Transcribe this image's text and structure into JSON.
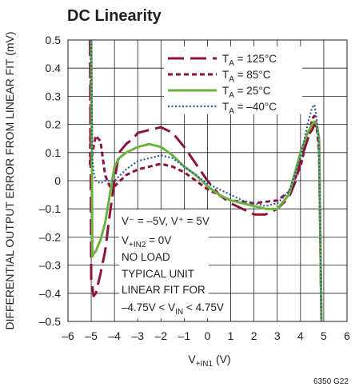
{
  "chart_data": {
    "type": "line",
    "title": "DC Linearity",
    "ylabel": "DIFFERENTIAL OUTPUT ERROR FROM LINEAR FIT (mV)",
    "xlabel": {
      "main": "V",
      "sub": "+IN1",
      "unit": " (V)"
    },
    "xlim": [
      -6,
      6
    ],
    "ylim": [
      -0.5,
      0.5
    ],
    "xticks": [
      -6,
      -5,
      -4,
      -3,
      -2,
      -1,
      0,
      1,
      2,
      3,
      4,
      5,
      6
    ],
    "yticks": [
      0.5,
      0.4,
      0.3,
      0.2,
      0.1,
      0,
      -0.1,
      -0.2,
      -0.3,
      -0.4,
      -0.5
    ],
    "xtick_labels": [
      "–6",
      "–5",
      "–4",
      "–3",
      "–2",
      "–1",
      "0",
      "1",
      "2",
      "3",
      "4",
      "5",
      "6"
    ],
    "ytick_labels": [
      "0.5",
      "0.4",
      "0.3",
      "0.2",
      "0.1",
      "0",
      "–0.1",
      "–0.2",
      "–0.3",
      "–0.4",
      "–0.5"
    ],
    "grid": true,
    "legend_position": "top-right",
    "series": [
      {
        "name": "T",
        "name_sub": "A",
        "name_rest": " = 125°C",
        "color": "#8a1538",
        "style": "long-dash",
        "x": [
          -5.05,
          -5.0,
          -4.9,
          -4.8,
          -4.6,
          -4.4,
          -4.2,
          -4.0,
          -3.8,
          -3.5,
          -3.2,
          -3.0,
          -2.5,
          -2.0,
          -1.5,
          -1.0,
          -0.5,
          0.0,
          0.5,
          1.0,
          1.5,
          2.0,
          2.5,
          3.0,
          3.5,
          3.8,
          4.0,
          4.2,
          4.4,
          4.5,
          4.6,
          4.7,
          4.8,
          4.85,
          4.9
        ],
        "y": [
          0.5,
          -0.35,
          -0.41,
          -0.4,
          -0.33,
          -0.25,
          -0.12,
          0.0,
          0.1,
          0.13,
          0.15,
          0.17,
          0.18,
          0.19,
          0.17,
          0.12,
          0.06,
          0.0,
          -0.05,
          -0.08,
          -0.1,
          -0.12,
          -0.12,
          -0.1,
          -0.06,
          0.0,
          0.07,
          0.12,
          0.17,
          0.18,
          0.2,
          0.19,
          0.13,
          -0.2,
          -0.5
        ]
      },
      {
        "name": "T",
        "name_sub": "A",
        "name_rest": " = 85°C",
        "color": "#8a1538",
        "style": "short-dash",
        "x": [
          -5.0,
          -5.05,
          -4.9,
          -4.8,
          -4.6,
          -4.5,
          -4.4,
          -4.2,
          -4.0,
          -3.5,
          -3.0,
          -2.5,
          -2.0,
          -1.5,
          -1.0,
          -0.5,
          0.0,
          0.5,
          1.0,
          2.0,
          3.0,
          3.5,
          4.0,
          4.2,
          4.4,
          4.5,
          4.6,
          4.7,
          4.8,
          4.85,
          4.9
        ],
        "y": [
          0.5,
          0.05,
          0.12,
          0.16,
          0.14,
          0.08,
          0.02,
          -0.02,
          -0.02,
          0.02,
          0.04,
          0.05,
          0.06,
          0.05,
          0.03,
          0.0,
          -0.03,
          -0.05,
          -0.07,
          -0.08,
          -0.07,
          -0.04,
          0.05,
          0.12,
          0.17,
          0.22,
          0.23,
          0.19,
          0.1,
          -0.2,
          -0.5
        ]
      },
      {
        "name": "T",
        "name_sub": "A",
        "name_rest": " = 25°C",
        "color": "#6bb33f",
        "style": "solid",
        "x": [
          -5.0,
          -4.95,
          -4.9,
          -4.8,
          -4.6,
          -4.4,
          -4.2,
          -4.0,
          -3.8,
          -3.5,
          -3.0,
          -2.5,
          -2.0,
          -1.5,
          -1.0,
          -0.5,
          0.0,
          0.5,
          1.0,
          1.5,
          2.0,
          2.5,
          3.0,
          3.5,
          4.0,
          4.3,
          4.5,
          4.6,
          4.7,
          4.8,
          4.85,
          4.9
        ],
        "y": [
          0.5,
          -0.27,
          -0.26,
          -0.25,
          -0.21,
          -0.15,
          -0.05,
          0.05,
          0.08,
          0.1,
          0.12,
          0.13,
          0.12,
          0.09,
          0.05,
          0.02,
          -0.02,
          -0.05,
          -0.07,
          -0.08,
          -0.09,
          -0.1,
          -0.1,
          -0.05,
          0.1,
          0.17,
          0.2,
          0.21,
          0.2,
          0.15,
          -0.2,
          -0.5
        ]
      },
      {
        "name": "T",
        "name_sub": "A",
        "name_rest": " = –40°C",
        "color": "#2e5aa8",
        "style": "dotted",
        "x": [
          -5.0,
          -4.95,
          -4.9,
          -4.8,
          -4.6,
          -4.4,
          -4.2,
          -4.0,
          -3.5,
          -3.0,
          -2.5,
          -2.0,
          -1.5,
          -1.0,
          -0.5,
          0.0,
          0.5,
          1.0,
          1.5,
          2.0,
          2.5,
          3.0,
          3.5,
          4.0,
          4.3,
          4.5,
          4.6,
          4.7,
          4.8,
          4.85,
          4.9
        ],
        "y": [
          0.5,
          0.08,
          0.03,
          0.0,
          -0.01,
          0.0,
          0.0,
          0.0,
          0.04,
          0.07,
          0.08,
          0.09,
          0.08,
          0.05,
          0.02,
          -0.01,
          -0.03,
          -0.05,
          -0.07,
          -0.08,
          -0.09,
          -0.08,
          -0.04,
          0.08,
          0.2,
          0.26,
          0.27,
          0.22,
          0.12,
          -0.2,
          -0.5
        ]
      }
    ],
    "annotations": [
      "V⁻ = –5V, V⁺ = 5V",
      {
        "main": "V",
        "sub": "+IN2",
        "rest": " = 0V"
      },
      "NO LOAD",
      "TYPICAL UNIT",
      "LINEAR FIT FOR",
      {
        "pre": "–4.75V < V",
        "sub": "IN",
        "rest": " < 4.75V"
      }
    ],
    "figure_id": "6350 G22"
  }
}
